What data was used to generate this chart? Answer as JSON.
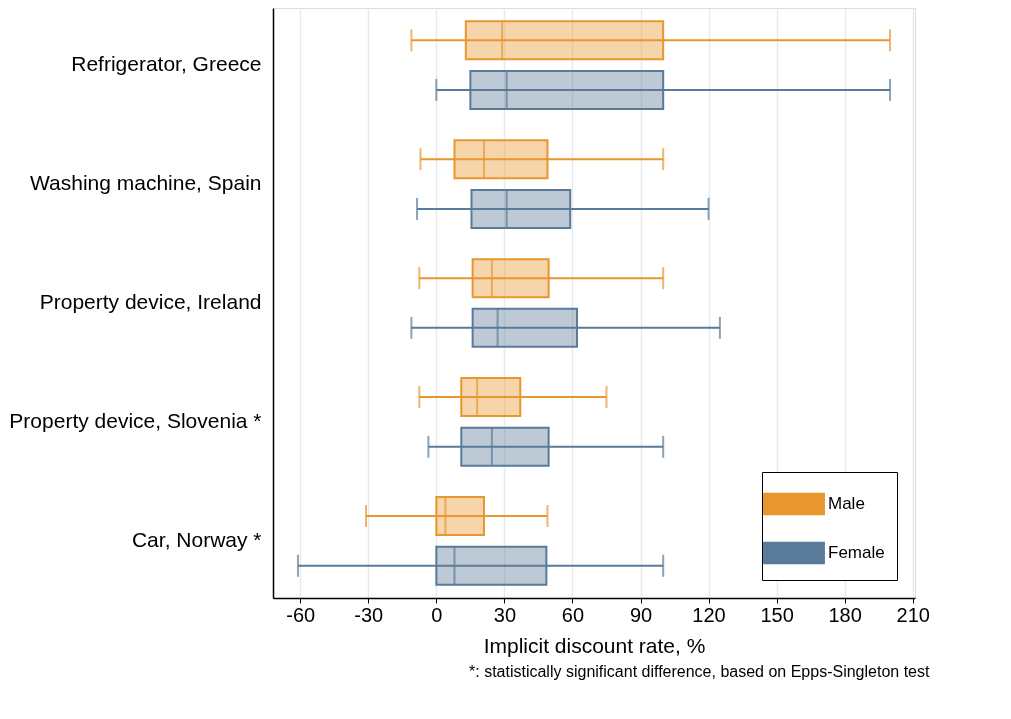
{
  "chart_data": {
    "type": "box",
    "orientation": "horizontal",
    "categories": [
      "Refrigerator, Greece",
      "Washing machine, Spain",
      "Property device, Ireland",
      "Property device, Slovenia *",
      "Car, Norway *"
    ],
    "xlabel": "Implicit discount rate, %",
    "xlim": [
      -72,
      211
    ],
    "xticks": [
      -60,
      -30,
      0,
      30,
      60,
      90,
      120,
      150,
      180,
      210
    ],
    "grid": "x",
    "legend": "bottom right",
    "annotations": [
      "*: statistically significant difference, based on Epps-Singleton test"
    ],
    "series": [
      {
        "name": "Male",
        "color": "#e8962e",
        "boxes": [
          {
            "low": -11,
            "q1": 13,
            "median": 29,
            "q3": 100,
            "high": 200
          },
          {
            "low": -7,
            "q1": 8,
            "median": 21,
            "q3": 49,
            "high": 100
          },
          {
            "low": -7.5,
            "q1": 16,
            "median": 24.5,
            "q3": 49.5,
            "high": 100
          },
          {
            "low": -7.5,
            "q1": 11,
            "median": 18,
            "q3": 37,
            "high": 75
          },
          {
            "low": -31,
            "q1": 0,
            "median": 4,
            "q3": 21,
            "high": 49
          }
        ]
      },
      {
        "name": "Female",
        "color": "#5a7a99",
        "boxes": [
          {
            "low": 0,
            "q1": 15,
            "median": 31,
            "q3": 100,
            "high": 200
          },
          {
            "low": -8.5,
            "q1": 15.5,
            "median": 31,
            "q3": 59,
            "high": 120
          },
          {
            "low": -11,
            "q1": 16,
            "median": 27,
            "q3": 62,
            "high": 125
          },
          {
            "low": -3.5,
            "q1": 11,
            "median": 24.5,
            "q3": 49.5,
            "high": 100
          },
          {
            "low": -61,
            "q1": 0,
            "median": 8,
            "q3": 48.5,
            "high": 100
          }
        ]
      }
    ]
  }
}
